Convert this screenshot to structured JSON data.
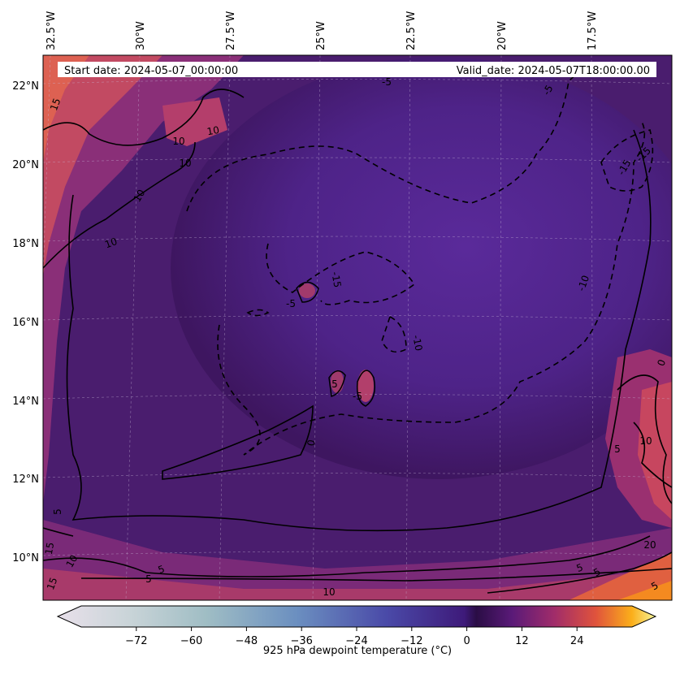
{
  "header": {
    "start_label": "Start date: 2024-05-07_00:00:00",
    "valid_label": "Valid_date: 2024-05-07T18:00:00.00"
  },
  "map": {
    "lon_labels": [
      "32.5°W",
      "30°W",
      "27.5°W",
      "25°W",
      "22.5°W",
      "20°W",
      "17.5°W"
    ],
    "lat_labels": [
      "22°N",
      "20°N",
      "18°N",
      "16°N",
      "14°N",
      "12°N",
      "10°N"
    ],
    "contour_labels": [
      "15",
      "10",
      "10",
      "10",
      "10",
      "10",
      "-5",
      "-5",
      "-5",
      "-15",
      "-15",
      "-15",
      "-10",
      "-10",
      "-5",
      "5",
      "0",
      "0",
      "5",
      "10",
      "5",
      "15",
      "20",
      "5",
      "5",
      "5",
      "10",
      "5",
      "15",
      "10",
      "5"
    ]
  },
  "colorbar": {
    "label": "925 hPa dewpoint temperature ($^\\circ$C)",
    "label_display": "925 hPa dewpoint temperature (°C)",
    "ticks": [
      "−72",
      "−60",
      "−48",
      "−36",
      "−24",
      "−12",
      "0",
      "12",
      "24"
    ],
    "range": [
      -84,
      36
    ],
    "colormap": "inferno-like (grey-blue for negatives, purple-orange-yellow for positives)"
  },
  "colors": {
    "background_field": "#4a1d78",
    "warm_edge": "#c2456a",
    "hot": "#f58a20",
    "contour": "#000000"
  }
}
